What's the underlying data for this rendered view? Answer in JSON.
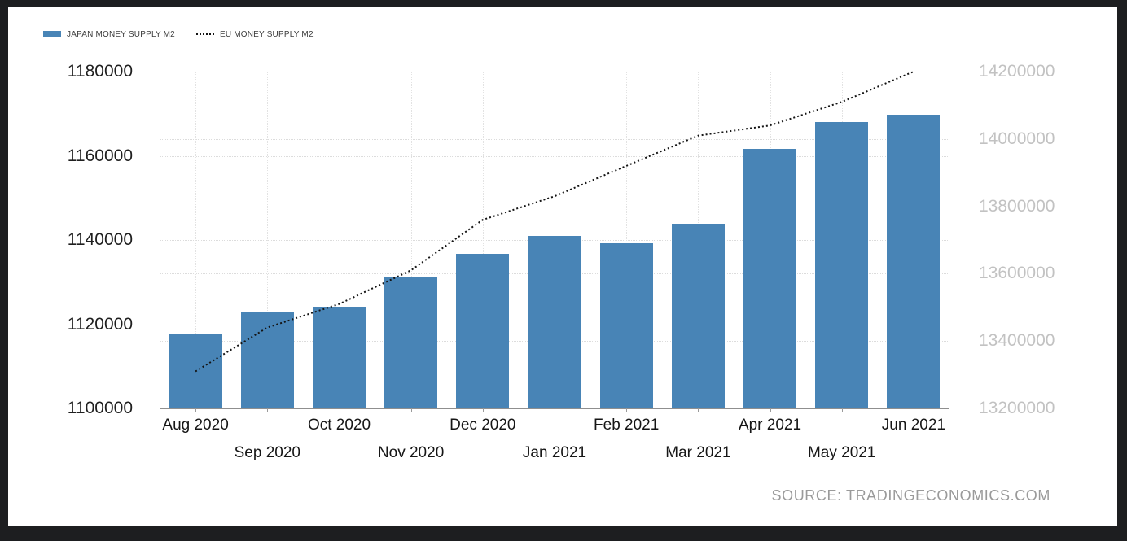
{
  "frame": {
    "background_color": "#1d1e20",
    "card_background_color": "#ffffff"
  },
  "legend": {
    "items": [
      {
        "label": "JAPAN MONEY SUPPLY M2",
        "swatch": "bar",
        "color": "#4884b6"
      },
      {
        "label": "EU MONEY SUPPLY M2",
        "swatch": "dotted-line",
        "color": "#141414"
      }
    ]
  },
  "source": {
    "label": "SOURCE: TRADINGECONOMICS.COM"
  },
  "chart_data": {
    "type": "bar",
    "subtype": "bar-with-dotted-line-overlay",
    "categories": [
      "Aug 2020",
      "Sep 2020",
      "Oct 2020",
      "Nov 2020",
      "Dec 2020",
      "Jan 2021",
      "Feb 2021",
      "Mar 2021",
      "Apr 2021",
      "May 2021",
      "Jun 2021"
    ],
    "series": [
      {
        "name": "JAPAN MONEY SUPPLY M2",
        "type": "bar",
        "axis": "left",
        "color": "#4884b6",
        "values": [
          1117600,
          1122800,
          1124100,
          1131400,
          1136700,
          1140900,
          1139300,
          1143800,
          1161700,
          1168100,
          1169800
        ]
      },
      {
        "name": "EU MONEY SUPPLY M2",
        "type": "dotted-line",
        "axis": "right",
        "color": "#141414",
        "values": [
          13310000,
          13440000,
          13510000,
          13610000,
          13760000,
          13830000,
          13920000,
          14010000,
          14040000,
          14110000,
          14200000
        ]
      }
    ],
    "left_axis": {
      "min": 1100000,
      "max": 1180000,
      "ticks": [
        1100000,
        1120000,
        1140000,
        1160000,
        1180000
      ]
    },
    "right_axis": {
      "min": 13200000,
      "max": 14200000,
      "ticks": [
        13200000,
        13400000,
        13600000,
        13800000,
        14000000,
        14200000
      ]
    },
    "grid": "dotted",
    "legend_position": "top-left",
    "x_label_layout": "staggered-two-rows"
  }
}
